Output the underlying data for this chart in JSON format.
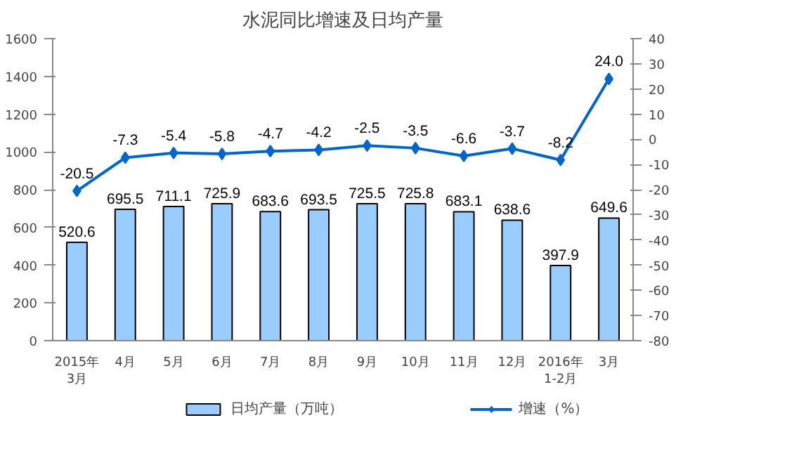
{
  "chart_data": {
    "type": "bar",
    "title": "水泥同比增速及日均产量",
    "categories": [
      "2015年\n3月",
      "4月",
      "5月",
      "6月",
      "7月",
      "8月",
      "9月",
      "10月",
      "11月",
      "12月",
      "2016年\n1-2月",
      "3月"
    ],
    "series": [
      {
        "name": "日均产量（万吨）",
        "color": "#99ccff",
        "values": [
          520.6,
          695.5,
          711.1,
          725.9,
          683.6,
          693.5,
          725.5,
          725.8,
          683.1,
          638.6,
          397.9,
          649.6
        ]
      },
      {
        "name": "增速（%）",
        "type": "line",
        "axis": "y2",
        "color": "#0066cc",
        "marker": "diamond",
        "values": [
          -20.5,
          -7.3,
          -5.4,
          -5.8,
          -4.7,
          -4.2,
          -2.5,
          -3.5,
          -6.6,
          -3.7,
          -8.2,
          24.0
        ],
        "value_labels": [
          "-20.5",
          "-7.3",
          "-5.4",
          "-5.8",
          "-4.7",
          "-4.2",
          "-2.5",
          "-3.5",
          "-6.6",
          "-3.7",
          "-8.2",
          "24.0"
        ]
      }
    ],
    "ylim": [
      0,
      1600
    ],
    "yticks": [
      0,
      200,
      400,
      600,
      800,
      1000,
      1200,
      1400,
      1600
    ],
    "y2lim": [
      -80,
      40
    ],
    "y2ticks": [
      -80,
      -70,
      -60,
      -50,
      -40,
      -30,
      -20,
      -10,
      0,
      10,
      20,
      30,
      40
    ],
    "data_labels": true,
    "legend": "bottom",
    "grid": false
  }
}
